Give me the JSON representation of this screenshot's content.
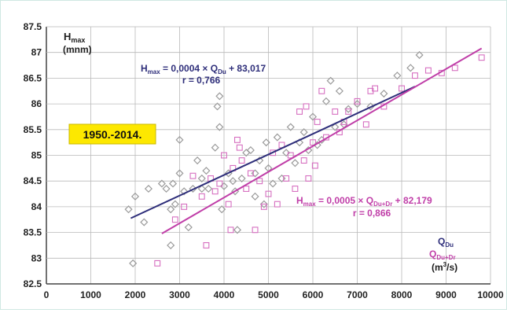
{
  "chart_data": {
    "type": "scatter",
    "title": "",
    "xlim": [
      0,
      10000
    ],
    "ylim": [
      82.5,
      87.5
    ],
    "x_ticks": [
      "0",
      "1000",
      "2000",
      "3000",
      "4000",
      "5000",
      "6000",
      "7000",
      "8000",
      "9000",
      "10000"
    ],
    "y_ticks": [
      "82.5",
      "83",
      "83.5",
      "84",
      "84.5",
      "85",
      "85.5",
      "86",
      "86.5",
      "87",
      "87.5"
    ],
    "grid": true,
    "ylabel": {
      "main": "H",
      "sub": "max",
      "unit": "(mnm)"
    },
    "xlabel": {
      "q_du_main": "Q",
      "q_du_sub": "Du",
      "q_dudr_main": "Q",
      "q_dudr_sub": "Du+Dr",
      "unit_pre": "(m",
      "unit_sup": "3",
      "unit_post": "/s)"
    },
    "period_label": "1950.-2014.",
    "series": [
      {
        "marker": "diamond",
        "color": "#9a9a9a",
        "points": [
          [
            1850,
            83.95
          ],
          [
            1950,
            82.9
          ],
          [
            2000,
            84.2
          ],
          [
            2200,
            83.7
          ],
          [
            2300,
            84.35
          ],
          [
            2600,
            84.45
          ],
          [
            2700,
            84.35
          ],
          [
            2800,
            83.25
          ],
          [
            2800,
            83.95
          ],
          [
            2850,
            84.45
          ],
          [
            2900,
            84.05
          ],
          [
            3000,
            85.3
          ],
          [
            3000,
            84.65
          ],
          [
            3100,
            84.3
          ],
          [
            3200,
            83.6
          ],
          [
            3300,
            84.35
          ],
          [
            3400,
            84.9
          ],
          [
            3500,
            84.55
          ],
          [
            3500,
            84.35
          ],
          [
            3600,
            84.7
          ],
          [
            3650,
            84.35
          ],
          [
            3800,
            85.15
          ],
          [
            3850,
            85.95
          ],
          [
            3900,
            86.15
          ],
          [
            3900,
            85.55
          ],
          [
            3950,
            83.95
          ],
          [
            4000,
            84.4
          ],
          [
            4100,
            84.65
          ],
          [
            4200,
            84.5
          ],
          [
            4250,
            84.3
          ],
          [
            4300,
            83.55
          ],
          [
            4400,
            84.55
          ],
          [
            4500,
            85.05
          ],
          [
            4600,
            85.1
          ],
          [
            4700,
            84.65
          ],
          [
            4700,
            84.2
          ],
          [
            4800,
            84.9
          ],
          [
            4900,
            84.05
          ],
          [
            4950,
            85.25
          ],
          [
            5000,
            84.75
          ],
          [
            5100,
            84.45
          ],
          [
            5200,
            85.35
          ],
          [
            5300,
            84.55
          ],
          [
            5400,
            85.05
          ],
          [
            5500,
            85.55
          ],
          [
            5600,
            84.85
          ],
          [
            5700,
            85.25
          ],
          [
            5800,
            85.45
          ],
          [
            5900,
            85.1
          ],
          [
            6000,
            85.75
          ],
          [
            6100,
            85.2
          ],
          [
            6200,
            85.3
          ],
          [
            6300,
            86.05
          ],
          [
            6400,
            86.45
          ],
          [
            6500,
            85.55
          ],
          [
            6600,
            86.25
          ],
          [
            6700,
            85.6
          ],
          [
            6800,
            85.9
          ],
          [
            7000,
            86.0
          ],
          [
            7300,
            85.95
          ],
          [
            7600,
            86.2
          ],
          [
            7900,
            86.55
          ],
          [
            8200,
            86.7
          ],
          [
            8400,
            86.95
          ]
        ]
      },
      {
        "marker": "square",
        "color": "#d66fc0",
        "points": [
          [
            2500,
            82.9
          ],
          [
            2900,
            83.75
          ],
          [
            3100,
            84.0
          ],
          [
            3300,
            84.6
          ],
          [
            3500,
            84.2
          ],
          [
            3600,
            83.25
          ],
          [
            3700,
            84.55
          ],
          [
            3800,
            84.3
          ],
          [
            3900,
            84.45
          ],
          [
            4000,
            85.0
          ],
          [
            4100,
            84.05
          ],
          [
            4150,
            83.55
          ],
          [
            4200,
            84.75
          ],
          [
            4300,
            85.3
          ],
          [
            4350,
            85.15
          ],
          [
            4400,
            84.9
          ],
          [
            4500,
            84.35
          ],
          [
            4600,
            84.65
          ],
          [
            4700,
            83.55
          ],
          [
            4800,
            84.5
          ],
          [
            4900,
            84.0
          ],
          [
            5000,
            84.25
          ],
          [
            5100,
            85.05
          ],
          [
            5200,
            84.05
          ],
          [
            5300,
            85.2
          ],
          [
            5400,
            84.55
          ],
          [
            5500,
            85.0
          ],
          [
            5600,
            84.35
          ],
          [
            5700,
            85.85
          ],
          [
            5800,
            84.9
          ],
          [
            5850,
            85.95
          ],
          [
            5900,
            84.55
          ],
          [
            6000,
            85.25
          ],
          [
            6050,
            84.8
          ],
          [
            6100,
            85.65
          ],
          [
            6200,
            86.25
          ],
          [
            6300,
            85.35
          ],
          [
            6500,
            85.85
          ],
          [
            6600,
            85.45
          ],
          [
            6700,
            85.65
          ],
          [
            6800,
            85.85
          ],
          [
            7000,
            86.05
          ],
          [
            7200,
            85.6
          ],
          [
            7300,
            86.25
          ],
          [
            7400,
            86.3
          ],
          [
            7600,
            85.95
          ],
          [
            8000,
            86.3
          ],
          [
            8300,
            86.55
          ],
          [
            8600,
            86.65
          ],
          [
            8900,
            86.6
          ],
          [
            9200,
            86.7
          ],
          [
            9800,
            86.9
          ]
        ]
      }
    ],
    "regressions": [
      {
        "color": "#2e2e7a",
        "x_range": [
          1900,
          8300
        ],
        "slope": 0.0004,
        "intercept": 83.017,
        "eq_H": "H",
        "eq_H_sub": "max",
        "eq_mid": " = 0,0004 × Q",
        "eq_Q_sub": "Du",
        "eq_end": " + 83,017",
        "r_text": "r = 0,766"
      },
      {
        "color": "#c03ea8",
        "x_range": [
          2600,
          9800
        ],
        "slope": 0.0005,
        "intercept": 82.179,
        "eq_H": "H",
        "eq_H_sub": "max",
        "eq_mid": " = 0,0005 × Q",
        "eq_Q_sub": "Du+Dr",
        "eq_end": " + 82,179",
        "r_text": "r = 0,866"
      }
    ]
  }
}
